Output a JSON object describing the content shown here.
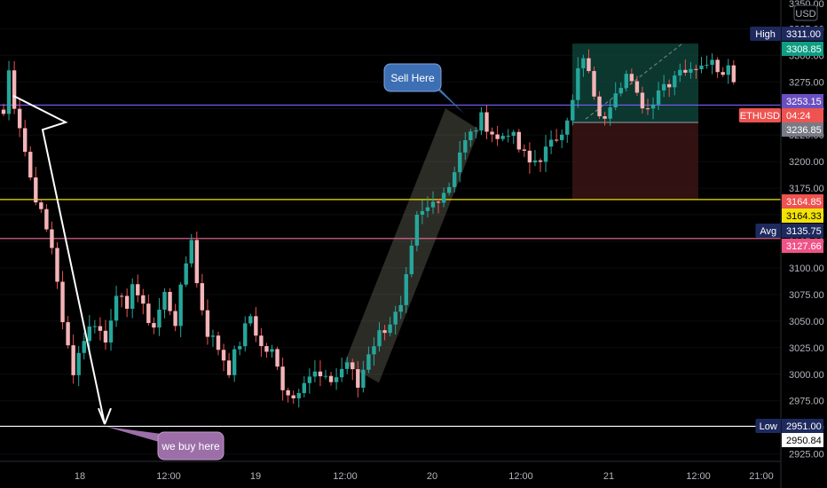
{
  "chart_data": {
    "type": "candlestick",
    "symbol": "ETHUSD",
    "currency": "USD",
    "countdown": "04:24",
    "x_ticks": [
      "18",
      "12:00",
      "19",
      "12:00",
      "20",
      "12:00",
      "21",
      "12:00",
      "21:00"
    ],
    "y_ticks": [
      3325,
      3300,
      3275,
      3250,
      3225,
      3200,
      3175,
      3150,
      3125,
      3100,
      3075,
      3050,
      3025,
      3000,
      2975,
      2950,
      2925
    ],
    "y_range": [
      2918,
      3352
    ],
    "y_top_label": "3350.00",
    "price_tags": [
      {
        "label": "High",
        "value": "3311.00",
        "color": "#1e2a5e"
      },
      {
        "label": "",
        "value": "3308.85",
        "color": "#0f9d83"
      },
      {
        "label": "",
        "value": "3253.15",
        "color": "#6a4fc1"
      },
      {
        "label": "ETHUSD",
        "value": "04:24",
        "color": "#ef5350"
      },
      {
        "label": "",
        "value": "3236.85",
        "color": "#787b86"
      },
      {
        "label": "",
        "value": "3164.85",
        "color": "#ef5350"
      },
      {
        "label": "",
        "value": "3164.33",
        "color": "#f2e205"
      },
      {
        "label": "Avg",
        "value": "3135.75",
        "color": "#1e2a5e"
      },
      {
        "label": "",
        "value": "3127.66",
        "color": "#ef5388"
      },
      {
        "label": "Low",
        "value": "2951.00",
        "color": "#1e2a5e"
      },
      {
        "label": "",
        "value": "2950.84",
        "color": "#ffffff"
      }
    ],
    "horizontal_lines": [
      {
        "value": 3253.15,
        "color": "#7b5cff"
      },
      {
        "value": 3164.33,
        "color": "#f2e205"
      },
      {
        "value": 3127.66,
        "color": "#ef6b9a"
      },
      {
        "value": 2951.0,
        "color": "#ffffff"
      }
    ],
    "annotations": [
      {
        "text": "Sell Here",
        "color": "#3d6fb4"
      },
      {
        "text": "we buy here",
        "color": "#9c6fa8"
      }
    ],
    "price_path": [
      [
        0,
        3245
      ],
      [
        1,
        3285
      ],
      [
        2,
        3255
      ],
      [
        3,
        3235
      ],
      [
        5,
        3185
      ],
      [
        7,
        3150
      ],
      [
        9,
        3120
      ],
      [
        10,
        3090
      ],
      [
        11,
        3045
      ],
      [
        12,
        3025
      ],
      [
        13,
        3005
      ],
      [
        15,
        3035
      ],
      [
        17,
        3050
      ],
      [
        19,
        3030
      ],
      [
        21,
        3080
      ],
      [
        23,
        3055
      ],
      [
        24,
        3090
      ],
      [
        26,
        3060
      ],
      [
        28,
        3045
      ],
      [
        30,
        3075
      ],
      [
        32,
        3050
      ],
      [
        34,
        3105
      ],
      [
        35,
        3130
      ],
      [
        36,
        3085
      ],
      [
        38,
        3040
      ],
      [
        40,
        3025
      ],
      [
        42,
        3005
      ],
      [
        44,
        3030
      ],
      [
        46,
        3055
      ],
      [
        48,
        3025
      ],
      [
        50,
        3020
      ],
      [
        52,
        2990
      ],
      [
        54,
        2978
      ],
      [
        56,
        2998
      ],
      [
        58,
        3000
      ],
      [
        60,
        2992
      ],
      [
        62,
        2998
      ],
      [
        64,
        3012
      ],
      [
        66,
        2988
      ],
      [
        68,
        3022
      ],
      [
        70,
        3038
      ],
      [
        72,
        3050
      ],
      [
        74,
        3060
      ],
      [
        76,
        3115
      ],
      [
        77,
        3145
      ],
      [
        79,
        3155
      ],
      [
        81,
        3168
      ],
      [
        83,
        3178
      ],
      [
        85,
        3210
      ],
      [
        87,
        3225
      ],
      [
        89,
        3240
      ],
      [
        90,
        3235
      ],
      [
        92,
        3220
      ],
      [
        94,
        3230
      ],
      [
        96,
        3212
      ],
      [
        98,
        3198
      ],
      [
        100,
        3205
      ],
      [
        102,
        3215
      ],
      [
        104,
        3232
      ],
      [
        106,
        3255
      ],
      [
        107,
        3285
      ],
      [
        108,
        3295
      ],
      [
        110,
        3265
      ],
      [
        111,
        3238
      ],
      [
        112,
        3245
      ],
      [
        114,
        3270
      ],
      [
        116,
        3282
      ],
      [
        118,
        3260
      ],
      [
        120,
        3250
      ],
      [
        122,
        3270
      ],
      [
        124,
        3276
      ],
      [
        126,
        3290
      ],
      [
        128,
        3283
      ],
      [
        129,
        3292
      ],
      [
        131,
        3298
      ],
      [
        133,
        3290
      ],
      [
        134,
        3283
      ],
      [
        135,
        3296
      ],
      [
        136,
        3275
      ]
    ]
  }
}
